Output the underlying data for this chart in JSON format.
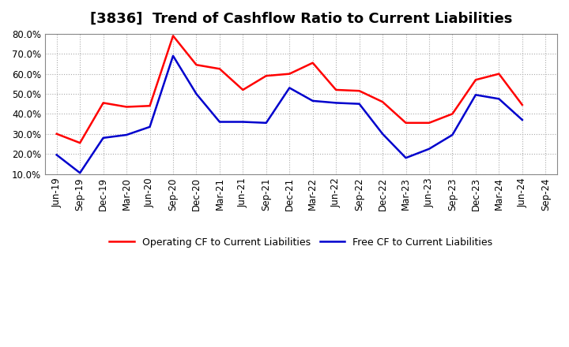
{
  "title": "[3836]  Trend of Cashflow Ratio to Current Liabilities",
  "x_labels": [
    "Jun-19",
    "Sep-19",
    "Dec-19",
    "Mar-20",
    "Jun-20",
    "Sep-20",
    "Dec-20",
    "Mar-21",
    "Jun-21",
    "Sep-21",
    "Dec-21",
    "Mar-22",
    "Jun-22",
    "Sep-22",
    "Dec-22",
    "Mar-23",
    "Jun-23",
    "Sep-23",
    "Dec-23",
    "Mar-24",
    "Jun-24",
    "Sep-24"
  ],
  "operating_cf": [
    30.0,
    25.5,
    45.5,
    43.5,
    44.0,
    79.0,
    64.5,
    62.5,
    52.0,
    59.0,
    60.0,
    65.5,
    52.0,
    51.5,
    46.0,
    35.5,
    35.5,
    40.0,
    57.0,
    60.0,
    44.5,
    null
  ],
  "free_cf": [
    19.5,
    10.5,
    28.0,
    29.5,
    33.5,
    69.0,
    50.0,
    36.0,
    36.0,
    35.5,
    53.0,
    46.5,
    45.5,
    45.0,
    30.0,
    18.0,
    22.5,
    29.5,
    49.5,
    47.5,
    37.0,
    null
  ],
  "operating_color": "#ff0000",
  "free_color": "#0000cd",
  "ylim": [
    10.0,
    80.0
  ],
  "yticks": [
    10.0,
    20.0,
    30.0,
    40.0,
    50.0,
    60.0,
    70.0,
    80.0
  ],
  "legend_operating": "Operating CF to Current Liabilities",
  "legend_free": "Free CF to Current Liabilities",
  "bg_color": "#ffffff",
  "plot_bg_color": "#ffffff",
  "title_fontsize": 13,
  "label_fontsize": 9,
  "tick_fontsize": 8.5
}
